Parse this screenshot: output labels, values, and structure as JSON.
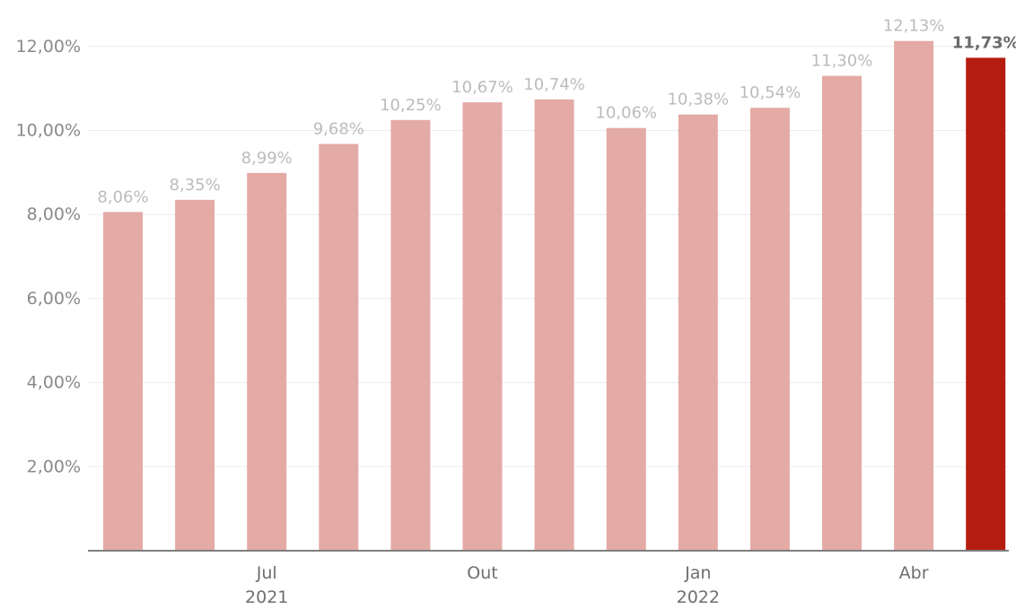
{
  "chart_data": {
    "type": "bar",
    "categories": [
      "",
      "",
      "Jul 2021",
      "",
      "",
      "Out",
      "",
      "",
      "Jan 2022",
      "",
      "",
      "Abr",
      ""
    ],
    "values": [
      8.06,
      8.35,
      8.99,
      9.68,
      10.25,
      10.67,
      10.74,
      10.06,
      10.38,
      10.54,
      11.3,
      12.13,
      11.73
    ],
    "data_labels": [
      "8,06%",
      "8,35%",
      "8,99%",
      "9,68%",
      "10,25%",
      "10,67%",
      "10,74%",
      "10,06%",
      "10,38%",
      "10,54%",
      "11,30%",
      "12,13%",
      "11,73%"
    ],
    "highlight_index": 12,
    "y_ticks": [
      {
        "value": 2,
        "label": "2,00%"
      },
      {
        "value": 4,
        "label": "4,00%"
      },
      {
        "value": 6,
        "label": "6,00%"
      },
      {
        "value": 8,
        "label": "8,00%"
      },
      {
        "value": 10,
        "label": "10,00%"
      },
      {
        "value": 12,
        "label": "12,00%"
      }
    ],
    "x_ticks": [
      {
        "index": 2,
        "label": "Jul",
        "sublabel": "2021"
      },
      {
        "index": 5,
        "label": "Out",
        "sublabel": ""
      },
      {
        "index": 8,
        "label": "Jan",
        "sublabel": "2022"
      },
      {
        "index": 11,
        "label": "Abr",
        "sublabel": ""
      }
    ],
    "ylim": [
      0,
      12.5
    ],
    "grid": true,
    "colors": {
      "bar": "#e4aaa6",
      "highlight": "#b51c10",
      "grid": "#ececec",
      "axis": "#7f7f7f"
    }
  }
}
